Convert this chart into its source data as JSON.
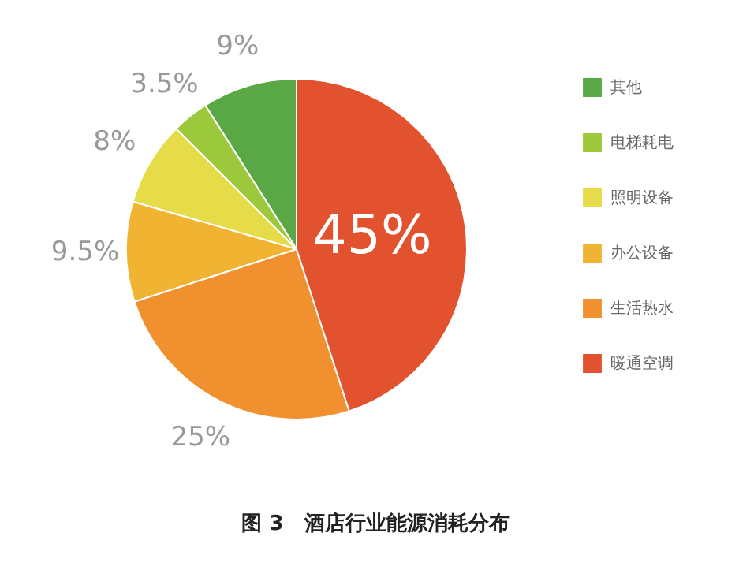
{
  "chart_data": {
    "type": "pie",
    "title": "图 3　酒店行业能源消耗分布",
    "categories": [
      "其他",
      "电梯耗电",
      "照明设备",
      "办公设备",
      "生活热水",
      "暖通空调"
    ],
    "values": [
      9,
      3.5,
      8,
      9.5,
      25,
      45
    ],
    "colors": [
      "#5aa845",
      "#9cc83c",
      "#e6dc4a",
      "#f0b432",
      "#f0902e",
      "#e2522e"
    ],
    "value_labels": [
      "9%",
      "3.5%",
      "8%",
      "9.5%",
      "25%",
      "45%"
    ],
    "legend": "right"
  }
}
